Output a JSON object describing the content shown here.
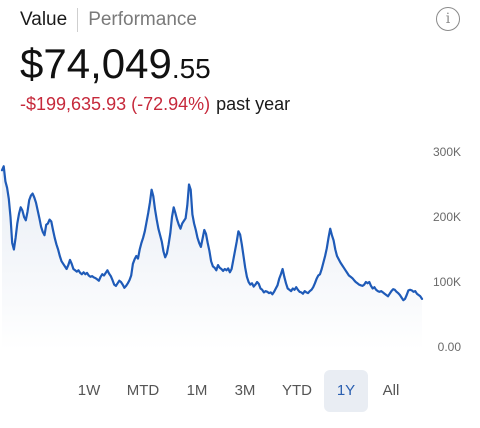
{
  "header": {
    "tab_value": "Value",
    "tab_performance": "Performance",
    "info_icon": "info-icon"
  },
  "portfolio": {
    "value_main": "$74,049",
    "value_cents": ".55",
    "change_amount": "-$199,635.93",
    "change_percent": "(-72.94%)",
    "change_period": "past year",
    "negative_color": "#c6293b"
  },
  "range_selector": {
    "options": [
      "1W",
      "MTD",
      "1M",
      "3M",
      "YTD",
      "1Y",
      "All"
    ],
    "selected": "1Y"
  },
  "chart_data": {
    "type": "area",
    "title": "",
    "xlabel": "",
    "ylabel": "",
    "yticks": [
      "300K",
      "200K",
      "100K",
      "0.00"
    ],
    "ylim": [
      0,
      300000
    ],
    "grid": false,
    "line_color": "#1f5bb8",
    "series": [
      {
        "values": [
          272000,
          278000,
          255000,
          245000,
          228000,
          200000,
          160000,
          150000,
          168000,
          190000,
          205000,
          215000,
          210000,
          200000,
          195000,
          208000,
          226000,
          233000,
          236000,
          230000,
          222000,
          210000,
          198000,
          185000,
          177000,
          172000,
          188000,
          190000,
          196000,
          193000,
          180000,
          168000,
          158000,
          150000,
          140000,
          132000,
          128000,
          124000,
          120000,
          126000,
          134000,
          128000,
          120000,
          118000,
          116000,
          118000,
          114000,
          112000,
          115000,
          112000,
          114000,
          110000,
          108000,
          109000,
          107000,
          106000,
          104000,
          102000,
          108000,
          112000,
          110000,
          114000,
          118000,
          113000,
          109000,
          103000,
          96000,
          94000,
          98000,
          102000,
          100000,
          96000,
          91000,
          94000,
          98000,
          103000,
          110000,
          128000,
          135000,
          140000,
          136000,
          150000,
          160000,
          168000,
          178000,
          192000,
          206000,
          222000,
          242000,
          232000,
          212000,
          196000,
          182000,
          172000,
          162000,
          147000,
          138000,
          144000,
          158000,
          175000,
          200000,
          215000,
          206000,
          196000,
          188000,
          182000,
          190000,
          194000,
          198000,
          218000,
          250000,
          242000,
          204000,
          190000,
          180000,
          168000,
          160000,
          154000,
          167000,
          180000,
          174000,
          160000,
          148000,
          132000,
          124000,
          122000,
          118000,
          126000,
          122000,
          120000,
          117000,
          120000,
          118000,
          121000,
          115000,
          120000,
          134000,
          148000,
          162000,
          178000,
          173000,
          158000,
          140000,
          122000,
          108000,
          100000,
          96000,
          98000,
          93000,
          96000,
          100000,
          97000,
          90000,
          88000,
          84000,
          86000,
          85000,
          83000,
          84000,
          81000,
          85000,
          90000,
          95000,
          105000,
          112000,
          120000,
          108000,
          98000,
          90000,
          88000,
          86000,
          90000,
          88000,
          92000,
          88000,
          85000,
          84000,
          82000,
          86000,
          84000,
          83000,
          86000,
          88000,
          92000,
          98000,
          105000,
          110000,
          112000,
          120000,
          130000,
          140000,
          152000,
          168000,
          182000,
          172000,
          164000,
          150000,
          140000,
          135000,
          130000,
          126000,
          122000,
          118000,
          114000,
          110000,
          108000,
          106000,
          103000,
          100000,
          98000,
          96000,
          95000,
          94000,
          96000,
          100000,
          98000,
          100000,
          94000,
          90000,
          92000,
          88000,
          86000,
          85000,
          86000,
          84000,
          82000,
          80000,
          78000,
          82000,
          86000,
          89000,
          88000,
          85000,
          83000,
          80000,
          76000,
          72000,
          74000,
          80000,
          87000,
          88000,
          87000,
          85000,
          86000,
          82000,
          80000,
          78000,
          74000
        ]
      }
    ]
  }
}
